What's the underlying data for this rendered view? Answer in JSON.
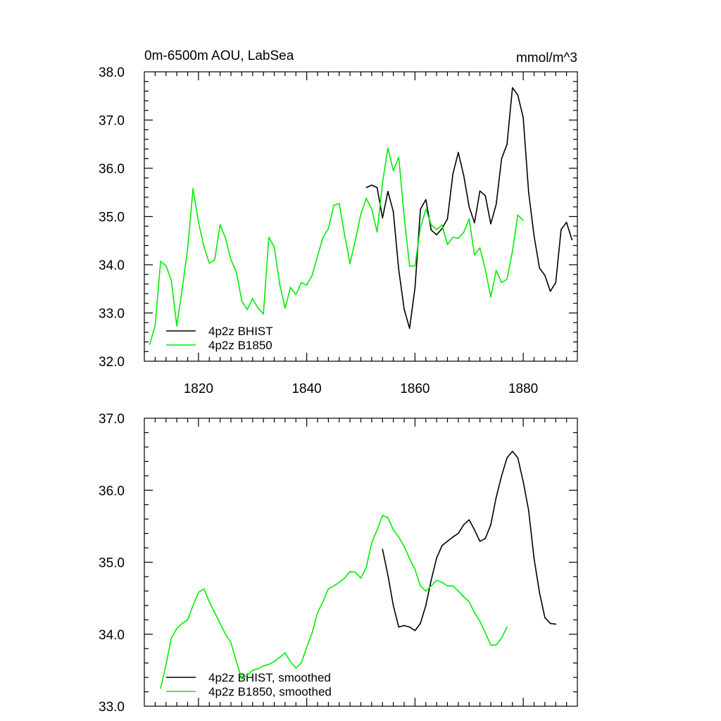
{
  "chart_data": [
    {
      "type": "line",
      "title_left": "0m-6500m AOU, LabSea",
      "title_right": "mmol/m^3",
      "xlim": [
        1810,
        1890
      ],
      "ylim": [
        32.0,
        38.0
      ],
      "x_ticks": [
        1820,
        1840,
        1860,
        1880
      ],
      "x_tick_labels": [
        "1820",
        "1840",
        "1860",
        "1880"
      ],
      "y_ticks": [
        32,
        33,
        34,
        35,
        36,
        37,
        38
      ],
      "y_tick_labels": [
        "32.0",
        "33.0",
        "34.0",
        "35.0",
        "36.0",
        "37.0",
        "38.0"
      ],
      "legend_position": "bottom-left",
      "series": [
        {
          "name": "4p2z BHIST",
          "color": "#000000",
          "x": [
            1851,
            1852,
            1853,
            1854,
            1855,
            1856,
            1857,
            1858,
            1859,
            1860,
            1861,
            1862,
            1863,
            1864,
            1865,
            1866,
            1867,
            1868,
            1869,
            1870,
            1871,
            1872,
            1873,
            1874,
            1875,
            1876,
            1877,
            1878,
            1879,
            1880,
            1881,
            1882,
            1883,
            1884,
            1885,
            1886,
            1887,
            1888,
            1889
          ],
          "y": [
            35.6,
            35.65,
            35.6,
            34.97,
            35.52,
            35.1,
            33.9,
            33.08,
            32.68,
            33.52,
            35.15,
            35.35,
            34.72,
            34.62,
            34.75,
            34.95,
            35.88,
            36.33,
            35.85,
            35.2,
            34.87,
            35.53,
            35.43,
            34.85,
            35.25,
            36.2,
            36.5,
            37.67,
            37.52,
            37.05,
            35.5,
            34.6,
            33.93,
            33.78,
            33.45,
            33.63,
            34.73,
            34.88,
            34.52
          ]
        },
        {
          "name": "4p2z B1850",
          "color": "#00ee00",
          "x": [
            1811,
            1812,
            1813,
            1814,
            1815,
            1816,
            1817,
            1818,
            1819,
            1820,
            1821,
            1822,
            1823,
            1824,
            1825,
            1826,
            1827,
            1828,
            1829,
            1830,
            1831,
            1832,
            1833,
            1834,
            1835,
            1836,
            1837,
            1838,
            1839,
            1840,
            1841,
            1842,
            1843,
            1844,
            1845,
            1846,
            1847,
            1848,
            1849,
            1850,
            1851,
            1852,
            1853,
            1854,
            1855,
            1856,
            1857,
            1858,
            1859,
            1860,
            1861,
            1862,
            1863,
            1864,
            1865,
            1866,
            1867,
            1868,
            1869,
            1870,
            1871,
            1872,
            1873,
            1874,
            1875,
            1876,
            1877,
            1878,
            1879,
            1880
          ],
          "y": [
            32.35,
            32.75,
            34.07,
            33.98,
            33.67,
            32.73,
            33.5,
            34.33,
            35.58,
            34.88,
            34.38,
            34.03,
            34.1,
            34.83,
            34.55,
            34.1,
            33.85,
            33.25,
            33.07,
            33.3,
            33.1,
            32.98,
            34.57,
            34.37,
            33.6,
            33.1,
            33.53,
            33.38,
            33.63,
            33.58,
            33.78,
            34.18,
            34.57,
            34.75,
            35.23,
            35.27,
            34.62,
            34.02,
            34.52,
            35.05,
            35.38,
            35.15,
            34.68,
            35.7,
            36.42,
            35.95,
            36.23,
            35.0,
            33.97,
            33.98,
            34.77,
            35.15,
            34.83,
            34.73,
            34.82,
            34.42,
            34.57,
            34.55,
            34.67,
            34.95,
            34.2,
            34.35,
            33.9,
            33.33,
            33.88,
            33.63,
            33.7,
            34.28,
            35.03,
            34.92
          ]
        }
      ]
    },
    {
      "type": "line",
      "xlim": [
        1810,
        1890
      ],
      "ylim": [
        33.0,
        37.0
      ],
      "x_ticks": [
        1820,
        1840,
        1860,
        1880
      ],
      "y_ticks": [
        33,
        34,
        35,
        36,
        37
      ],
      "y_tick_labels": [
        "33.0",
        "34.0",
        "35.0",
        "36.0",
        "37.0"
      ],
      "legend_position": "bottom-left",
      "series": [
        {
          "name": "4p2z BHIST, smoothed",
          "color": "#000000",
          "x": [
            1854,
            1855,
            1856,
            1857,
            1858,
            1859,
            1860,
            1861,
            1862,
            1863,
            1864,
            1865,
            1866,
            1867,
            1868,
            1869,
            1870,
            1871,
            1872,
            1873,
            1874,
            1875,
            1876,
            1877,
            1878,
            1879,
            1880,
            1881,
            1882,
            1883,
            1884,
            1885,
            1886
          ],
          "y": [
            35.18,
            34.82,
            34.4,
            34.1,
            34.12,
            34.1,
            34.05,
            34.15,
            34.4,
            34.75,
            35.06,
            35.23,
            35.29,
            35.35,
            35.4,
            35.52,
            35.59,
            35.45,
            35.29,
            35.33,
            35.52,
            35.9,
            36.2,
            36.45,
            36.54,
            36.45,
            36.12,
            35.72,
            35.05,
            34.58,
            34.23,
            34.15,
            34.14
          ]
        },
        {
          "name": "4p2z B1850, smoothed",
          "color": "#00ee00",
          "x": [
            1813,
            1814,
            1815,
            1816,
            1817,
            1818,
            1819,
            1820,
            1821,
            1822,
            1823,
            1824,
            1825,
            1826,
            1827,
            1828,
            1829,
            1830,
            1831,
            1832,
            1833,
            1834,
            1835,
            1836,
            1837,
            1838,
            1839,
            1840,
            1841,
            1842,
            1843,
            1844,
            1845,
            1846,
            1847,
            1848,
            1849,
            1850,
            1851,
            1852,
            1853,
            1854,
            1855,
            1856,
            1857,
            1858,
            1859,
            1860,
            1861,
            1862,
            1863,
            1864,
            1865,
            1866,
            1867,
            1868,
            1869,
            1870,
            1871,
            1872,
            1873,
            1874,
            1875,
            1876,
            1877
          ],
          "y": [
            33.25,
            33.58,
            33.95,
            34.08,
            34.15,
            34.2,
            34.4,
            34.58,
            34.63,
            34.45,
            34.3,
            34.15,
            34.0,
            33.88,
            33.62,
            33.38,
            33.43,
            33.5,
            33.52,
            33.56,
            33.58,
            33.62,
            33.68,
            33.74,
            33.62,
            33.53,
            33.6,
            33.82,
            34.02,
            34.3,
            34.45,
            34.63,
            34.67,
            34.72,
            34.78,
            34.87,
            34.86,
            34.78,
            34.93,
            35.27,
            35.45,
            35.65,
            35.62,
            35.45,
            35.35,
            35.22,
            35.05,
            34.9,
            34.67,
            34.6,
            34.67,
            34.75,
            34.72,
            34.67,
            34.67,
            34.6,
            34.52,
            34.45,
            34.3,
            34.18,
            34.02,
            33.85,
            33.85,
            33.95,
            34.1
          ]
        }
      ]
    }
  ]
}
